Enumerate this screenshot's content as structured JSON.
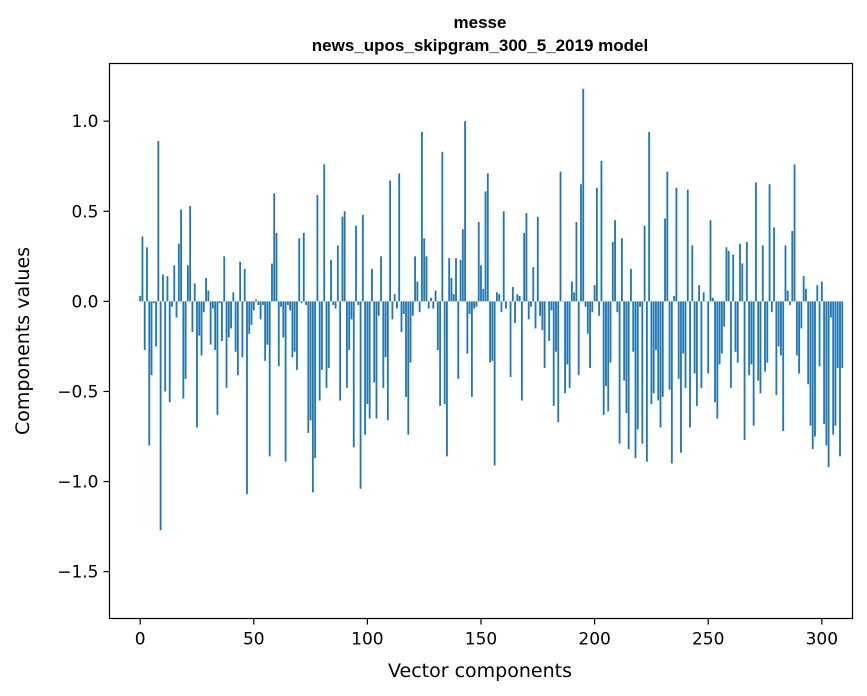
{
  "chart_data": {
    "type": "bar",
    "title": "messe",
    "subtitle": "news_upos_skipgram_300_5_2019 model",
    "xlabel": "Vector components",
    "ylabel": "Components values",
    "xlim": [
      -13.5,
      313.5
    ],
    "ylim": [
      -1.76,
      1.32
    ],
    "xticks": [
      0,
      50,
      100,
      150,
      200,
      250,
      300
    ],
    "xtick_labels": [
      "0",
      "50",
      "100",
      "150",
      "200",
      "250",
      "300"
    ],
    "yticks": [
      -1.5,
      -1.0,
      -0.5,
      0.0,
      0.5,
      1.0
    ],
    "ytick_labels": [
      "−1.5",
      "−1.0",
      "−0.5",
      "0.0",
      "0.5",
      "1.0"
    ],
    "bar_color": "#1f77b4",
    "grid": false,
    "values": [
      0.03,
      0.36,
      -0.27,
      0.3,
      -0.8,
      -0.41,
      -0.01,
      -0.25,
      0.89,
      -1.27,
      0.15,
      -0.5,
      0.14,
      -0.56,
      -0.03,
      0.2,
      -0.09,
      0.32,
      0.51,
      -0.54,
      -0.43,
      0.2,
      0.53,
      -0.17,
      0.1,
      -0.7,
      -0.19,
      -0.3,
      -0.06,
      0.13,
      0.06,
      -0.24,
      -0.04,
      -0.27,
      -0.63,
      -0.01,
      -0.22,
      0.25,
      -0.48,
      -0.2,
      -0.15,
      0.05,
      -0.28,
      -0.41,
      0.22,
      -0.31,
      0.18,
      -1.07,
      -0.18,
      -0.13,
      -0.05,
      0.01,
      -0.02,
      -0.1,
      -0.02,
      -0.33,
      -0.24,
      -0.86,
      0.21,
      0.6,
      0.38,
      -0.36,
      -0.03,
      -0.2,
      -0.89,
      -0.02,
      -0.05,
      -0.31,
      -0.28,
      -0.38,
      0.35,
      -0.01,
      0.38,
      -0.02,
      -0.73,
      -0.66,
      -1.06,
      -0.87,
      0.59,
      -0.55,
      -0.38,
      0.76,
      -0.48,
      -0.37,
      0.23,
      -0.02,
      -0.04,
      0.31,
      -0.55,
      0.47,
      0.5,
      -0.48,
      -0.27,
      -0.1,
      -0.81,
      0.42,
      -0.02,
      -1.04,
      0.48,
      -0.74,
      -0.57,
      -0.65,
      0.18,
      -0.45,
      -0.65,
      -0.08,
      0.25,
      -0.48,
      -0.31,
      -0.66,
      0.67,
      -0.1,
      0.04,
      -0.04,
      0.71,
      -0.17,
      -0.07,
      -0.53,
      -0.74,
      -0.34,
      -0.08,
      0.25,
      0.11,
      -0.06,
      0.94,
      0.35,
      0.25,
      -0.04,
      0.02,
      -0.04,
      0.06,
      -0.27,
      -0.58,
      0.83,
      -0.57,
      -0.86,
      0.24,
      0.13,
      0.04,
      0.24,
      -0.43,
      0.23,
      0.4,
      1.0,
      -0.29,
      -0.07,
      -0.53,
      -0.04,
      -0.03,
      0.44,
      0.2,
      0.07,
      0.61,
      0.71,
      -0.34,
      -0.33,
      -0.91,
      0.05,
      0.04,
      -0.06,
      0.5,
      -0.04,
      0.0,
      -0.42,
      0.08,
      -0.12,
      0.04,
      0.03,
      -0.55,
      0.38,
      0.49,
      -0.1,
      -0.03,
      0.19,
      -0.15,
      0.47,
      -0.08,
      -0.16,
      -0.37,
      0.0,
      -0.22,
      -0.05,
      -0.58,
      -0.28,
      -0.67,
      0.72,
      0.0,
      -0.51,
      -0.35,
      -0.48,
      0.11,
      0.05,
      0.44,
      -0.41,
      0.65,
      1.18,
      -0.03,
      -0.18,
      -0.37,
      -0.06,
      0.09,
      0.63,
      -0.08,
      0.78,
      -0.63,
      -0.47,
      -0.61,
      -0.34,
      0.33,
      0.45,
      -0.06,
      -0.79,
      0.35,
      -0.44,
      -0.62,
      -0.82,
      0.18,
      -0.28,
      -0.87,
      -0.71,
      -0.03,
      -0.79,
      0.42,
      -0.89,
      0.94,
      -0.57,
      -0.51,
      -0.27,
      -0.55,
      -0.7,
      -0.53,
      0.46,
      0.72,
      -0.49,
      -0.9,
      0.03,
      0.63,
      -0.43,
      -0.84,
      -0.29,
      -0.48,
      0.62,
      -0.7,
      0.31,
      -0.4,
      -0.58,
      0.09,
      -0.48,
      0.05,
      0.0,
      -0.4,
      0.45,
      0.02,
      -0.56,
      -0.65,
      -0.35,
      -0.29,
      -0.14,
      0.3,
      0.28,
      -0.48,
      0.26,
      -0.28,
      -0.34,
      0.32,
      0.21,
      -0.77,
      0.33,
      -0.41,
      -0.35,
      -0.69,
      0.66,
      -0.44,
      -0.51,
      0.31,
      -0.39,
      -0.34,
      0.65,
      -0.06,
      0.41,
      -0.52,
      -0.25,
      -0.3,
      -0.72,
      0.31,
      0.06,
      -0.02,
      0.39,
      0.76,
      -0.3,
      -0.4,
      -0.15,
      0.14,
      0.07,
      -0.46,
      -0.69,
      -0.82,
      -0.75,
      0.09,
      -0.36,
      0.11,
      -0.68,
      -0.8,
      -0.92,
      -0.09,
      -0.74,
      -0.69,
      -0.37,
      -0.86,
      -0.37
    ]
  }
}
